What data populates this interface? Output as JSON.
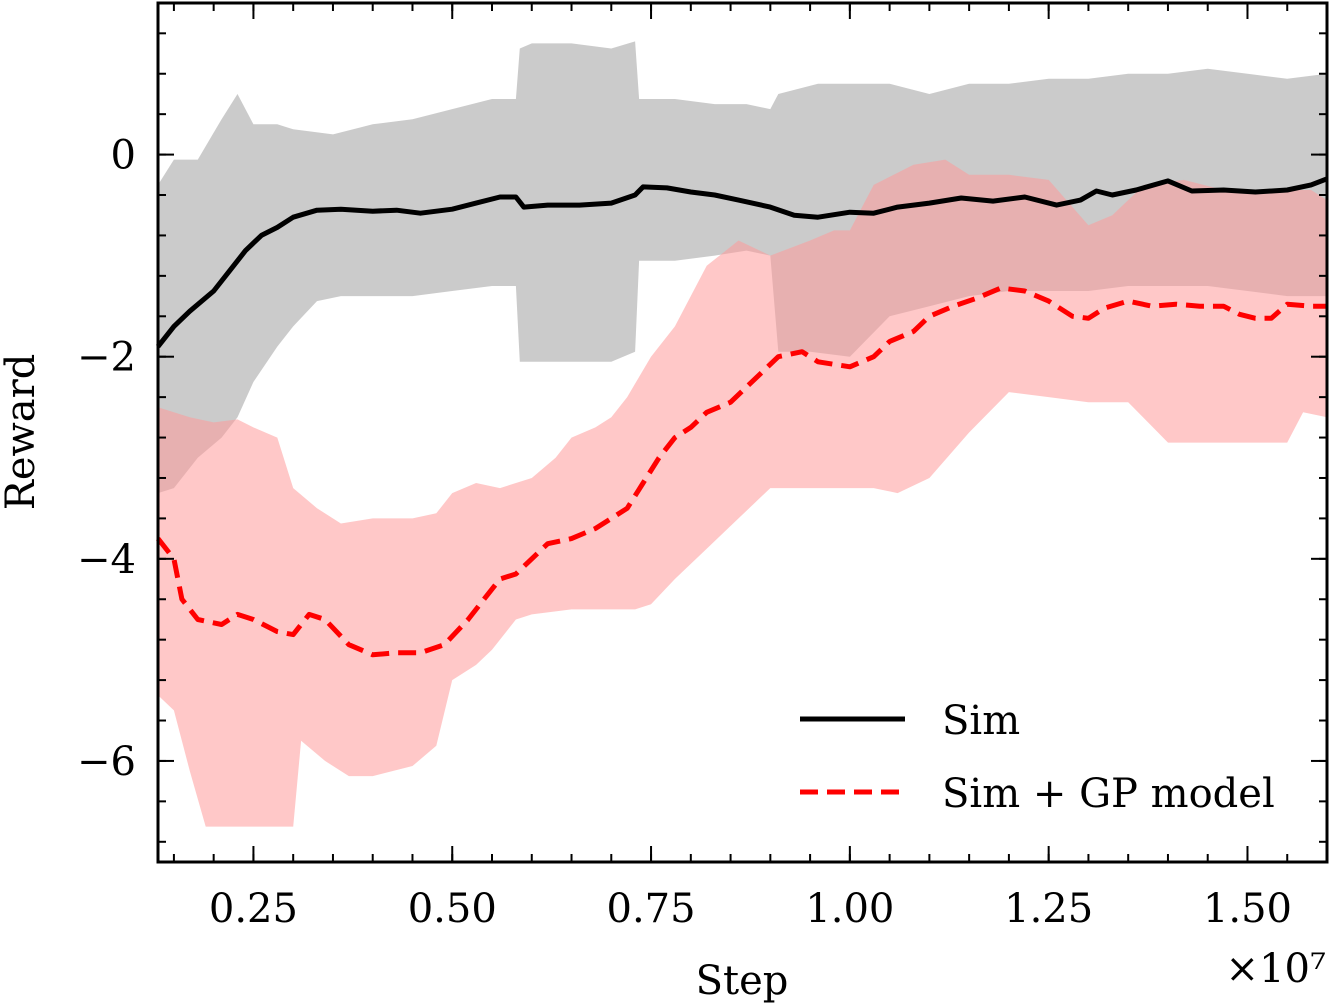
{
  "chart_data": {
    "type": "line",
    "xlabel": "Step",
    "ylabel": "Reward",
    "x_multiplier_label": "×10⁷",
    "xlim": [
      0.13,
      1.6
    ],
    "ylim": [
      -7.0,
      1.5
    ],
    "x_ticks": [
      {
        "value": 0.25,
        "label": "0.25"
      },
      {
        "value": 0.5,
        "label": "0.50"
      },
      {
        "value": 0.75,
        "label": "0.75"
      },
      {
        "value": 1.0,
        "label": "1.00"
      },
      {
        "value": 1.25,
        "label": "1.25"
      },
      {
        "value": 1.5,
        "label": "1.50"
      }
    ],
    "y_ticks": [
      {
        "value": 0,
        "label": "0"
      },
      {
        "value": -2,
        "label": "−2"
      },
      {
        "value": -4,
        "label": "−4"
      },
      {
        "value": -6,
        "label": "−6"
      }
    ],
    "legend": {
      "position": "lower-right"
    },
    "series": [
      {
        "name": "Sim",
        "color": "#000000",
        "style": "solid",
        "band_color": "#c8c8c8",
        "points": [
          [
            0.13,
            -1.9
          ],
          [
            0.15,
            -1.7
          ],
          [
            0.17,
            -1.55
          ],
          [
            0.2,
            -1.35
          ],
          [
            0.22,
            -1.15
          ],
          [
            0.24,
            -0.95
          ],
          [
            0.26,
            -0.8
          ],
          [
            0.28,
            -0.72
          ],
          [
            0.3,
            -0.62
          ],
          [
            0.33,
            -0.55
          ],
          [
            0.36,
            -0.54
          ],
          [
            0.4,
            -0.56
          ],
          [
            0.43,
            -0.55
          ],
          [
            0.46,
            -0.58
          ],
          [
            0.5,
            -0.54
          ],
          [
            0.53,
            -0.48
          ],
          [
            0.56,
            -0.42
          ],
          [
            0.58,
            -0.42
          ],
          [
            0.59,
            -0.52
          ],
          [
            0.62,
            -0.5
          ],
          [
            0.66,
            -0.5
          ],
          [
            0.7,
            -0.48
          ],
          [
            0.73,
            -0.4
          ],
          [
            0.74,
            -0.32
          ],
          [
            0.77,
            -0.33
          ],
          [
            0.8,
            -0.37
          ],
          [
            0.83,
            -0.4
          ],
          [
            0.86,
            -0.45
          ],
          [
            0.9,
            -0.52
          ],
          [
            0.93,
            -0.6
          ],
          [
            0.96,
            -0.62
          ],
          [
            1.0,
            -0.57
          ],
          [
            1.03,
            -0.58
          ],
          [
            1.06,
            -0.52
          ],
          [
            1.1,
            -0.48
          ],
          [
            1.14,
            -0.43
          ],
          [
            1.18,
            -0.46
          ],
          [
            1.22,
            -0.42
          ],
          [
            1.26,
            -0.5
          ],
          [
            1.29,
            -0.45
          ],
          [
            1.31,
            -0.36
          ],
          [
            1.33,
            -0.4
          ],
          [
            1.36,
            -0.35
          ],
          [
            1.4,
            -0.26
          ],
          [
            1.43,
            -0.36
          ],
          [
            1.47,
            -0.35
          ],
          [
            1.51,
            -0.37
          ],
          [
            1.55,
            -0.35
          ],
          [
            1.58,
            -0.3
          ],
          [
            1.6,
            -0.24
          ]
        ],
        "band_upper": [
          [
            0.13,
            -0.3
          ],
          [
            0.15,
            -0.05
          ],
          [
            0.18,
            -0.05
          ],
          [
            0.21,
            0.35
          ],
          [
            0.23,
            0.6
          ],
          [
            0.25,
            0.3
          ],
          [
            0.28,
            0.3
          ],
          [
            0.3,
            0.25
          ],
          [
            0.35,
            0.2
          ],
          [
            0.4,
            0.3
          ],
          [
            0.45,
            0.35
          ],
          [
            0.5,
            0.45
          ],
          [
            0.55,
            0.55
          ],
          [
            0.58,
            0.55
          ],
          [
            0.585,
            1.05
          ],
          [
            0.6,
            1.1
          ],
          [
            0.65,
            1.1
          ],
          [
            0.7,
            1.05
          ],
          [
            0.73,
            1.12
          ],
          [
            0.735,
            0.55
          ],
          [
            0.78,
            0.55
          ],
          [
            0.83,
            0.5
          ],
          [
            0.87,
            0.5
          ],
          [
            0.9,
            0.45
          ],
          [
            0.91,
            0.6
          ],
          [
            0.96,
            0.7
          ],
          [
            1.0,
            0.7
          ],
          [
            1.05,
            0.7
          ],
          [
            1.1,
            0.6
          ],
          [
            1.15,
            0.7
          ],
          [
            1.2,
            0.7
          ],
          [
            1.25,
            0.75
          ],
          [
            1.3,
            0.75
          ],
          [
            1.35,
            0.8
          ],
          [
            1.4,
            0.8
          ],
          [
            1.45,
            0.85
          ],
          [
            1.5,
            0.8
          ],
          [
            1.55,
            0.75
          ],
          [
            1.6,
            0.8
          ]
        ],
        "band_lower": [
          [
            0.13,
            -3.35
          ],
          [
            0.15,
            -3.3
          ],
          [
            0.18,
            -3.0
          ],
          [
            0.21,
            -2.8
          ],
          [
            0.23,
            -2.6
          ],
          [
            0.25,
            -2.25
          ],
          [
            0.28,
            -1.9
          ],
          [
            0.3,
            -1.7
          ],
          [
            0.33,
            -1.45
          ],
          [
            0.36,
            -1.4
          ],
          [
            0.4,
            -1.4
          ],
          [
            0.45,
            -1.4
          ],
          [
            0.5,
            -1.35
          ],
          [
            0.55,
            -1.3
          ],
          [
            0.58,
            -1.3
          ],
          [
            0.585,
            -2.05
          ],
          [
            0.6,
            -2.05
          ],
          [
            0.65,
            -2.05
          ],
          [
            0.7,
            -2.05
          ],
          [
            0.73,
            -1.95
          ],
          [
            0.735,
            -1.05
          ],
          [
            0.78,
            -1.05
          ],
          [
            0.83,
            -1.0
          ],
          [
            0.87,
            -0.95
          ],
          [
            0.9,
            -1.0
          ],
          [
            0.91,
            -1.95
          ],
          [
            0.95,
            -1.95
          ],
          [
            1.0,
            -2.0
          ],
          [
            1.05,
            -1.6
          ],
          [
            1.1,
            -1.5
          ],
          [
            1.15,
            -1.4
          ],
          [
            1.2,
            -1.35
          ],
          [
            1.25,
            -1.35
          ],
          [
            1.3,
            -1.35
          ],
          [
            1.35,
            -1.3
          ],
          [
            1.4,
            -1.3
          ],
          [
            1.45,
            -1.3
          ],
          [
            1.5,
            -1.35
          ],
          [
            1.55,
            -1.4
          ],
          [
            1.6,
            -1.4
          ]
        ]
      },
      {
        "name": "Sim + GP model",
        "color": "#ff0000",
        "style": "dashed",
        "band_color": "#ff9a9a",
        "points": [
          [
            0.13,
            -3.8
          ],
          [
            0.15,
            -4.0
          ],
          [
            0.16,
            -4.4
          ],
          [
            0.18,
            -4.6
          ],
          [
            0.21,
            -4.65
          ],
          [
            0.23,
            -4.55
          ],
          [
            0.25,
            -4.6
          ],
          [
            0.28,
            -4.72
          ],
          [
            0.3,
            -4.75
          ],
          [
            0.32,
            -4.55
          ],
          [
            0.34,
            -4.6
          ],
          [
            0.37,
            -4.85
          ],
          [
            0.4,
            -4.95
          ],
          [
            0.43,
            -4.93
          ],
          [
            0.46,
            -4.93
          ],
          [
            0.49,
            -4.85
          ],
          [
            0.52,
            -4.6
          ],
          [
            0.54,
            -4.4
          ],
          [
            0.56,
            -4.2
          ],
          [
            0.58,
            -4.15
          ],
          [
            0.6,
            -4.0
          ],
          [
            0.62,
            -3.85
          ],
          [
            0.65,
            -3.8
          ],
          [
            0.68,
            -3.7
          ],
          [
            0.7,
            -3.6
          ],
          [
            0.72,
            -3.5
          ],
          [
            0.74,
            -3.25
          ],
          [
            0.76,
            -3.0
          ],
          [
            0.78,
            -2.8
          ],
          [
            0.8,
            -2.7
          ],
          [
            0.82,
            -2.55
          ],
          [
            0.85,
            -2.45
          ],
          [
            0.87,
            -2.3
          ],
          [
            0.89,
            -2.15
          ],
          [
            0.91,
            -2.0
          ],
          [
            0.94,
            -1.95
          ],
          [
            0.96,
            -2.05
          ],
          [
            1.0,
            -2.1
          ],
          [
            1.03,
            -2.0
          ],
          [
            1.05,
            -1.85
          ],
          [
            1.08,
            -1.75
          ],
          [
            1.1,
            -1.6
          ],
          [
            1.13,
            -1.5
          ],
          [
            1.16,
            -1.42
          ],
          [
            1.19,
            -1.32
          ],
          [
            1.22,
            -1.35
          ],
          [
            1.25,
            -1.45
          ],
          [
            1.28,
            -1.6
          ],
          [
            1.3,
            -1.62
          ],
          [
            1.32,
            -1.52
          ],
          [
            1.35,
            -1.45
          ],
          [
            1.38,
            -1.5
          ],
          [
            1.41,
            -1.48
          ],
          [
            1.44,
            -1.5
          ],
          [
            1.47,
            -1.5
          ],
          [
            1.49,
            -1.58
          ],
          [
            1.51,
            -1.62
          ],
          [
            1.53,
            -1.62
          ],
          [
            1.55,
            -1.48
          ],
          [
            1.58,
            -1.5
          ],
          [
            1.6,
            -1.5
          ]
        ],
        "band_upper": [
          [
            0.13,
            -2.5
          ],
          [
            0.15,
            -2.55
          ],
          [
            0.17,
            -2.6
          ],
          [
            0.2,
            -2.65
          ],
          [
            0.23,
            -2.62
          ],
          [
            0.25,
            -2.7
          ],
          [
            0.28,
            -2.8
          ],
          [
            0.3,
            -3.3
          ],
          [
            0.33,
            -3.5
          ],
          [
            0.36,
            -3.65
          ],
          [
            0.4,
            -3.6
          ],
          [
            0.45,
            -3.6
          ],
          [
            0.48,
            -3.55
          ],
          [
            0.5,
            -3.35
          ],
          [
            0.53,
            -3.25
          ],
          [
            0.56,
            -3.3
          ],
          [
            0.6,
            -3.2
          ],
          [
            0.63,
            -3.0
          ],
          [
            0.65,
            -2.8
          ],
          [
            0.68,
            -2.7
          ],
          [
            0.7,
            -2.6
          ],
          [
            0.72,
            -2.4
          ],
          [
            0.75,
            -2.0
          ],
          [
            0.78,
            -1.7
          ],
          [
            0.82,
            -1.1
          ],
          [
            0.86,
            -0.85
          ],
          [
            0.9,
            -1.0
          ],
          [
            0.95,
            -0.85
          ],
          [
            0.98,
            -0.75
          ],
          [
            1.0,
            -0.75
          ],
          [
            1.03,
            -0.3
          ],
          [
            1.08,
            -0.1
          ],
          [
            1.12,
            -0.05
          ],
          [
            1.15,
            -0.2
          ],
          [
            1.2,
            -0.2
          ],
          [
            1.25,
            -0.25
          ],
          [
            1.3,
            -0.7
          ],
          [
            1.33,
            -0.6
          ],
          [
            1.37,
            -0.3
          ],
          [
            1.42,
            -0.25
          ],
          [
            1.47,
            -0.35
          ],
          [
            1.5,
            -0.35
          ],
          [
            1.55,
            -0.35
          ],
          [
            1.58,
            -0.35
          ],
          [
            1.6,
            -0.45
          ]
        ],
        "band_lower": [
          [
            0.13,
            -5.35
          ],
          [
            0.15,
            -5.5
          ],
          [
            0.17,
            -6.1
          ],
          [
            0.19,
            -6.65
          ],
          [
            0.22,
            -6.65
          ],
          [
            0.25,
            -6.65
          ],
          [
            0.28,
            -6.65
          ],
          [
            0.3,
            -6.65
          ],
          [
            0.31,
            -5.8
          ],
          [
            0.34,
            -6.0
          ],
          [
            0.37,
            -6.15
          ],
          [
            0.4,
            -6.15
          ],
          [
            0.45,
            -6.05
          ],
          [
            0.48,
            -5.85
          ],
          [
            0.5,
            -5.2
          ],
          [
            0.53,
            -5.05
          ],
          [
            0.55,
            -4.9
          ],
          [
            0.58,
            -4.6
          ],
          [
            0.6,
            -4.55
          ],
          [
            0.65,
            -4.5
          ],
          [
            0.7,
            -4.5
          ],
          [
            0.73,
            -4.5
          ],
          [
            0.75,
            -4.45
          ],
          [
            0.78,
            -4.2
          ],
          [
            0.82,
            -3.9
          ],
          [
            0.86,
            -3.6
          ],
          [
            0.9,
            -3.3
          ],
          [
            0.95,
            -3.3
          ],
          [
            1.0,
            -3.3
          ],
          [
            1.03,
            -3.3
          ],
          [
            1.06,
            -3.35
          ],
          [
            1.1,
            -3.2
          ],
          [
            1.15,
            -2.75
          ],
          [
            1.2,
            -2.35
          ],
          [
            1.25,
            -2.4
          ],
          [
            1.3,
            -2.45
          ],
          [
            1.35,
            -2.45
          ],
          [
            1.4,
            -2.85
          ],
          [
            1.45,
            -2.85
          ],
          [
            1.5,
            -2.85
          ],
          [
            1.55,
            -2.85
          ],
          [
            1.57,
            -2.55
          ],
          [
            1.6,
            -2.6
          ]
        ]
      }
    ]
  }
}
